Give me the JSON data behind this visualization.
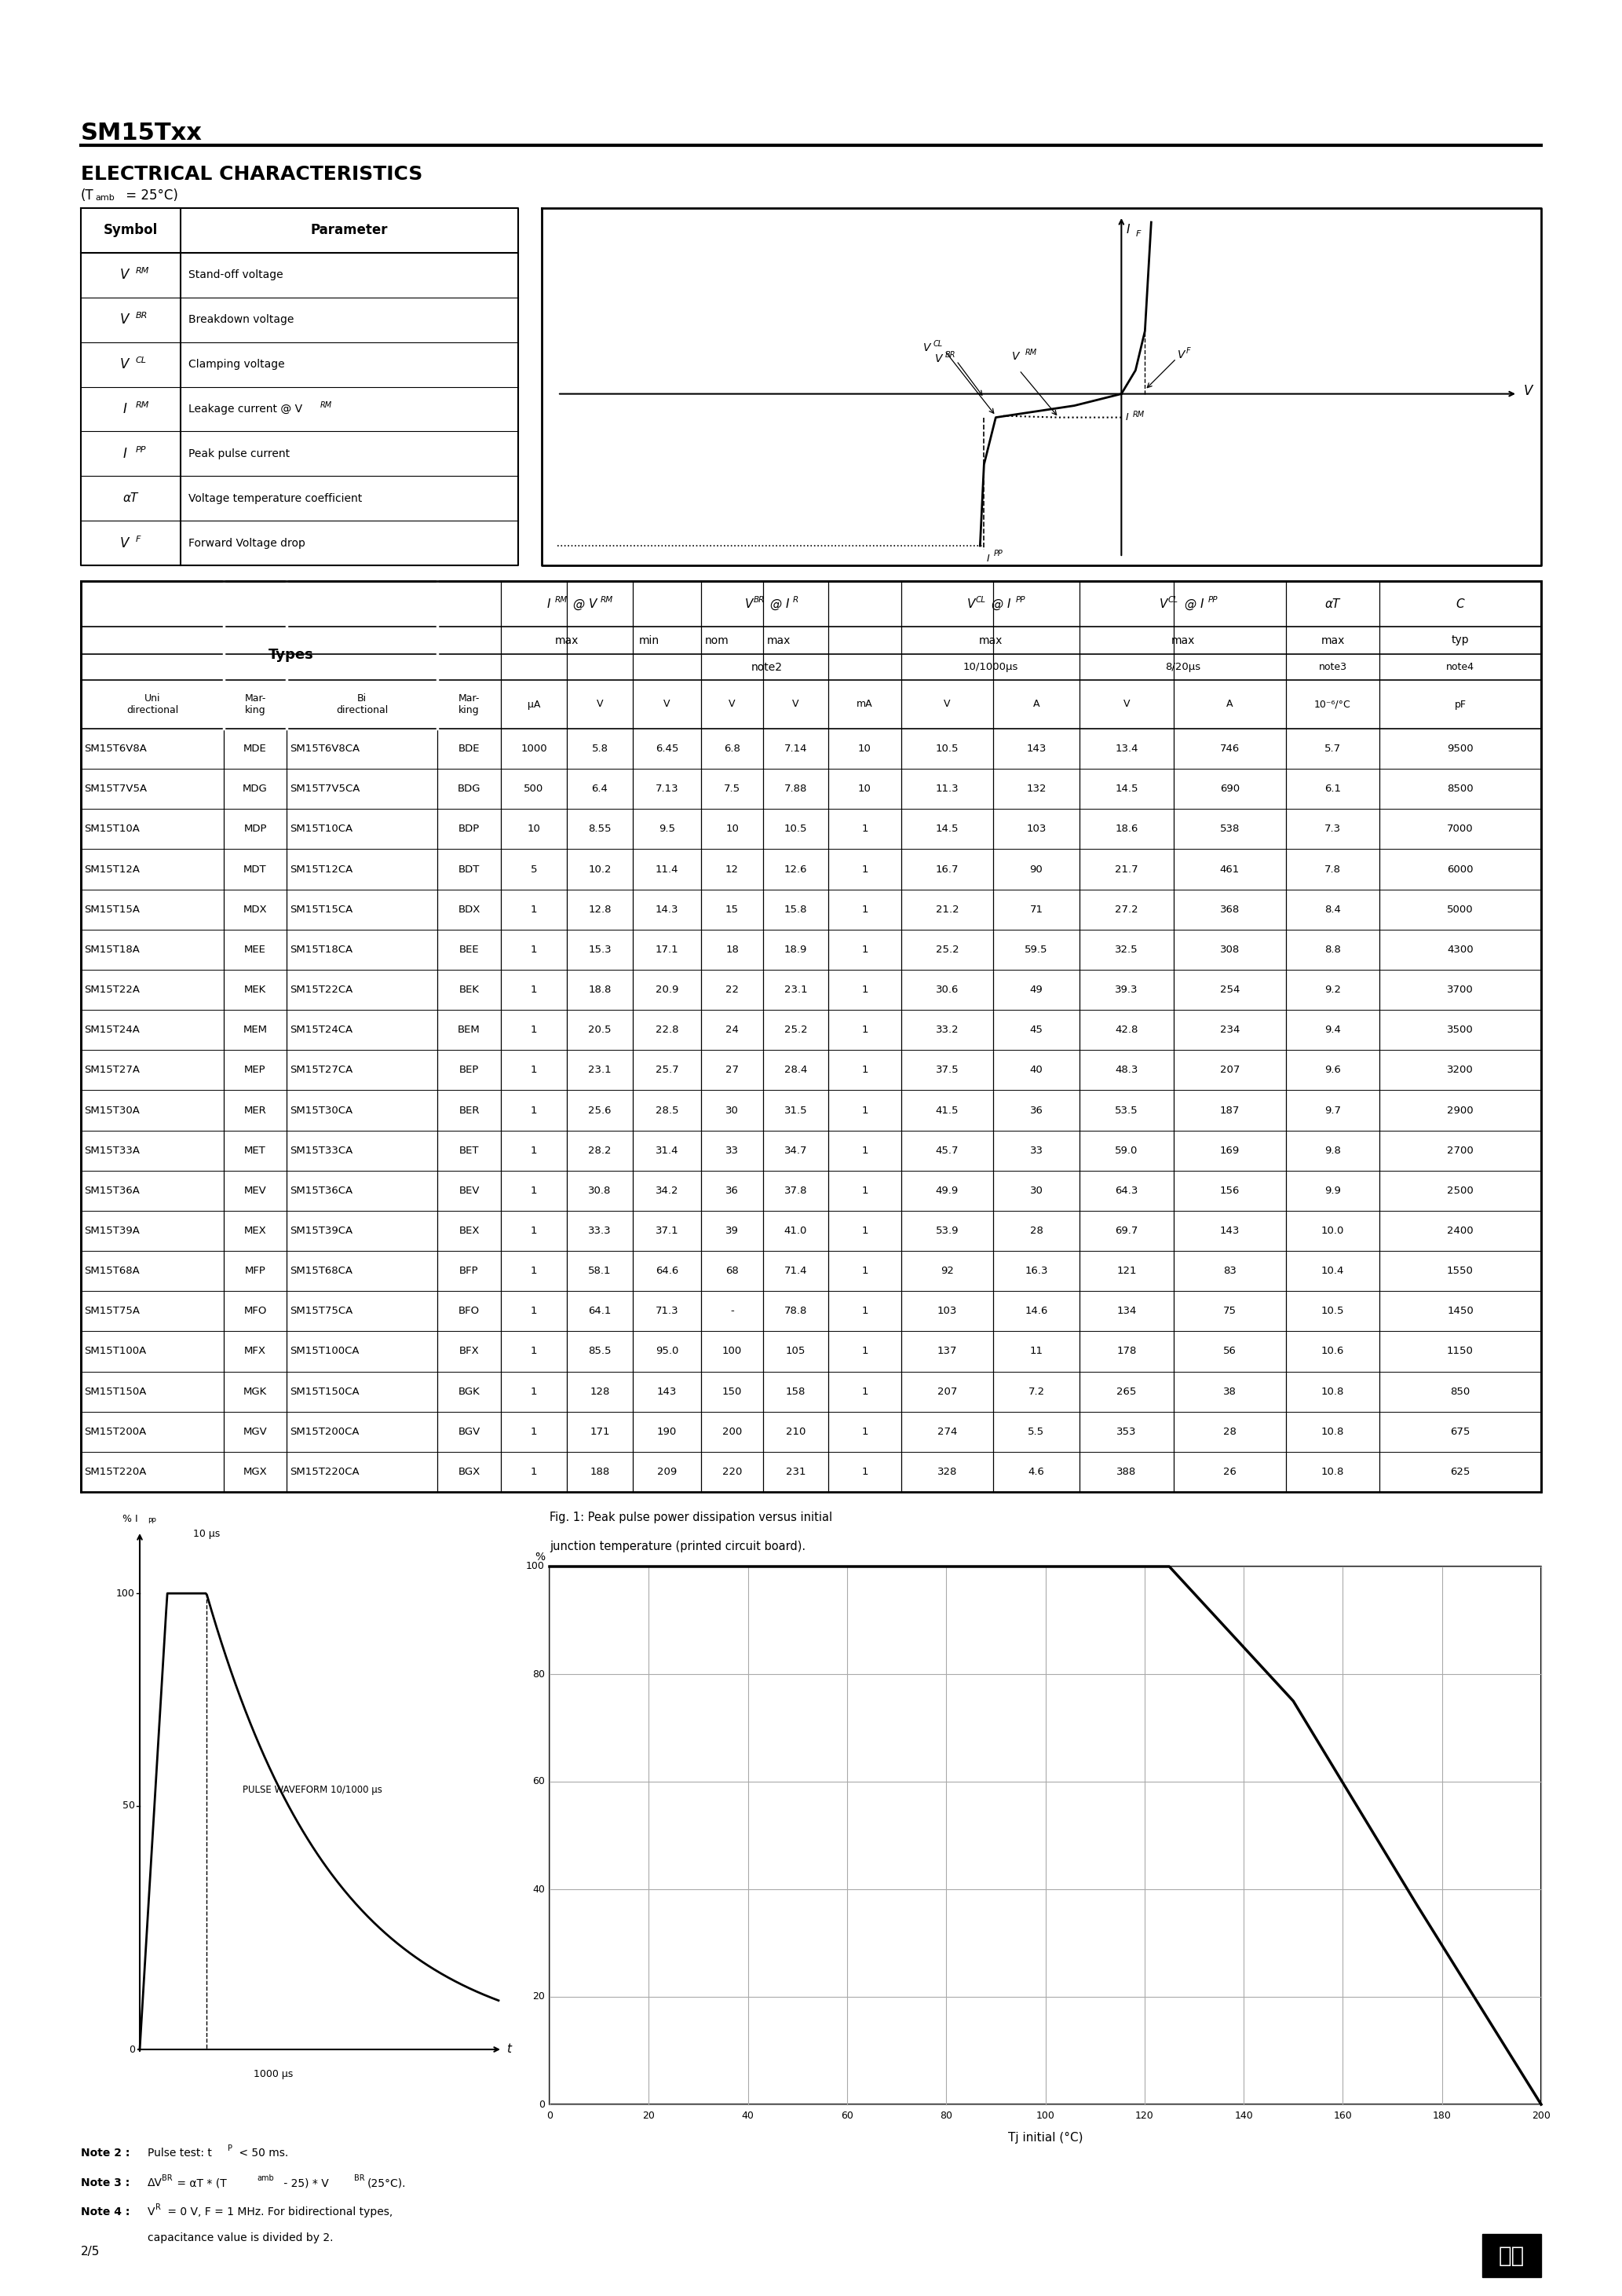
{
  "title": "SM15Txx",
  "section_title": "ELECTRICAL CHARACTERISTICS",
  "data_rows": [
    [
      "SM15T6V8A",
      "MDE",
      "SM15T6V8CA",
      "BDE",
      "1000",
      "5.8",
      "6.45",
      "6.8",
      "7.14",
      "10",
      "10.5",
      "143",
      "13.4",
      "746",
      "5.7",
      "9500"
    ],
    [
      "SM15T7V5A",
      "MDG",
      "SM15T7V5CA",
      "BDG",
      "500",
      "6.4",
      "7.13",
      "7.5",
      "7.88",
      "10",
      "11.3",
      "132",
      "14.5",
      "690",
      "6.1",
      "8500"
    ],
    [
      "SM15T10A",
      "MDP",
      "SM15T10CA",
      "BDP",
      "10",
      "8.55",
      "9.5",
      "10",
      "10.5",
      "1",
      "14.5",
      "103",
      "18.6",
      "538",
      "7.3",
      "7000"
    ],
    [
      "SM15T12A",
      "MDT",
      "SM15T12CA",
      "BDT",
      "5",
      "10.2",
      "11.4",
      "12",
      "12.6",
      "1",
      "16.7",
      "90",
      "21.7",
      "461",
      "7.8",
      "6000"
    ],
    [
      "SM15T15A",
      "MDX",
      "SM15T15CA",
      "BDX",
      "1",
      "12.8",
      "14.3",
      "15",
      "15.8",
      "1",
      "21.2",
      "71",
      "27.2",
      "368",
      "8.4",
      "5000"
    ],
    [
      "SM15T18A",
      "MEE",
      "SM15T18CA",
      "BEE",
      "1",
      "15.3",
      "17.1",
      "18",
      "18.9",
      "1",
      "25.2",
      "59.5",
      "32.5",
      "308",
      "8.8",
      "4300"
    ],
    [
      "SM15T22A",
      "MEK",
      "SM15T22CA",
      "BEK",
      "1",
      "18.8",
      "20.9",
      "22",
      "23.1",
      "1",
      "30.6",
      "49",
      "39.3",
      "254",
      "9.2",
      "3700"
    ],
    [
      "SM15T24A",
      "MEM",
      "SM15T24CA",
      "BEM",
      "1",
      "20.5",
      "22.8",
      "24",
      "25.2",
      "1",
      "33.2",
      "45",
      "42.8",
      "234",
      "9.4",
      "3500"
    ],
    [
      "SM15T27A",
      "MEP",
      "SM15T27CA",
      "BEP",
      "1",
      "23.1",
      "25.7",
      "27",
      "28.4",
      "1",
      "37.5",
      "40",
      "48.3",
      "207",
      "9.6",
      "3200"
    ],
    [
      "SM15T30A",
      "MER",
      "SM15T30CA",
      "BER",
      "1",
      "25.6",
      "28.5",
      "30",
      "31.5",
      "1",
      "41.5",
      "36",
      "53.5",
      "187",
      "9.7",
      "2900"
    ],
    [
      "SM15T33A",
      "MET",
      "SM15T33CA",
      "BET",
      "1",
      "28.2",
      "31.4",
      "33",
      "34.7",
      "1",
      "45.7",
      "33",
      "59.0",
      "169",
      "9.8",
      "2700"
    ],
    [
      "SM15T36A",
      "MEV",
      "SM15T36CA",
      "BEV",
      "1",
      "30.8",
      "34.2",
      "36",
      "37.8",
      "1",
      "49.9",
      "30",
      "64.3",
      "156",
      "9.9",
      "2500"
    ],
    [
      "SM15T39A",
      "MEX",
      "SM15T39CA",
      "BEX",
      "1",
      "33.3",
      "37.1",
      "39",
      "41.0",
      "1",
      "53.9",
      "28",
      "69.7",
      "143",
      "10.0",
      "2400"
    ],
    [
      "SM15T68A",
      "MFP",
      "SM15T68CA",
      "BFP",
      "1",
      "58.1",
      "64.6",
      "68",
      "71.4",
      "1",
      "92",
      "16.3",
      "121",
      "83",
      "10.4",
      "1550"
    ],
    [
      "SM15T75A",
      "MFO",
      "SM15T75CA",
      "BFO",
      "1",
      "64.1",
      "71.3",
      "-",
      "78.8",
      "1",
      "103",
      "14.6",
      "134",
      "75",
      "10.5",
      "1450"
    ],
    [
      "SM15T100A",
      "MFX",
      "SM15T100CA",
      "BFX",
      "1",
      "85.5",
      "95.0",
      "100",
      "105",
      "1",
      "137",
      "11",
      "178",
      "56",
      "10.6",
      "1150"
    ],
    [
      "SM15T150A",
      "MGK",
      "SM15T150CA",
      "BGK",
      "1",
      "128",
      "143",
      "150",
      "158",
      "1",
      "207",
      "7.2",
      "265",
      "38",
      "10.8",
      "850"
    ],
    [
      "SM15T200A",
      "MGV",
      "SM15T200CA",
      "BGV",
      "1",
      "171",
      "190",
      "200",
      "210",
      "1",
      "274",
      "5.5",
      "353",
      "28",
      "10.8",
      "675"
    ],
    [
      "SM15T220A",
      "MGX",
      "SM15T220CA",
      "BGX",
      "1",
      "188",
      "209",
      "220",
      "231",
      "1",
      "328",
      "4.6",
      "388",
      "26",
      "10.8",
      "625"
    ]
  ],
  "sym_params": [
    [
      "VRM",
      "Stand-off voltage"
    ],
    [
      "VBR",
      "Breakdown voltage"
    ],
    [
      "VCL",
      "Clamping voltage"
    ],
    [
      "IRM",
      "Leakage current @ VRM"
    ],
    [
      "IPP",
      "Peak pulse current"
    ],
    [
      "aT",
      "Voltage temperature coefficient"
    ],
    [
      "VF",
      "Forward Voltage drop"
    ]
  ],
  "page": "2/5",
  "fig1_line1": "Fig. 1: Peak pulse power dissipation versus initial",
  "fig1_line2": "junction temperature (printed circuit board).",
  "note2": "Note 2 :   Pulse test: tP < 50 ms.",
  "note3_pre": "Note 3 :   ΔVBR = αT * (Tamb - 25) * VBR(25°C).",
  "note4_pre": "Note 4 :   VR = 0 V, F = 1 MHz. For bidirectional types,",
  "note4_post": "             capacitance value is divided by 2.",
  "derating_curve_x": [
    0,
    25,
    75,
    125,
    150,
    175,
    200
  ],
  "derating_curve_pct": [
    100,
    100,
    100,
    100,
    75,
    37,
    0
  ]
}
